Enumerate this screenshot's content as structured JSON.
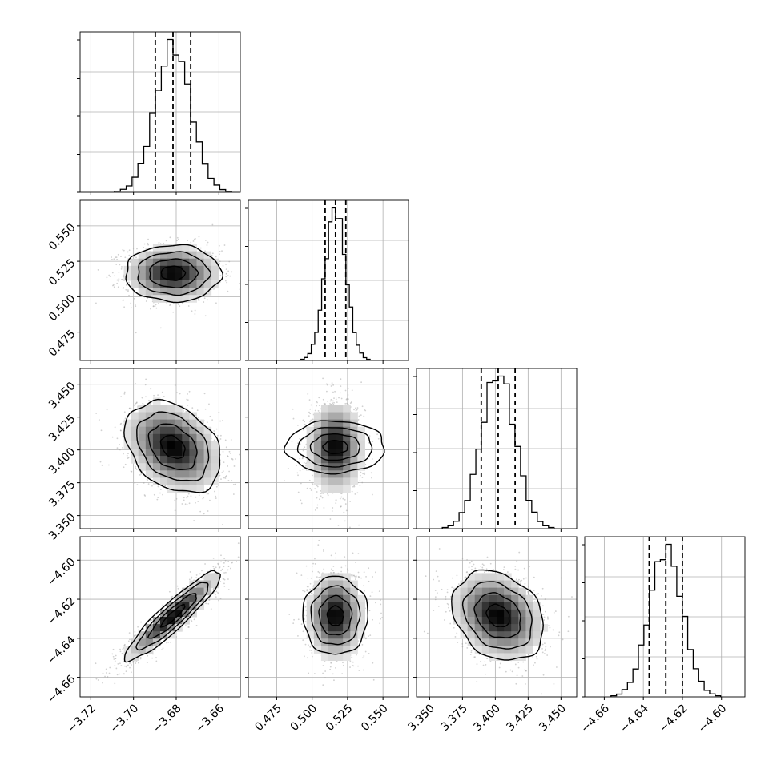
{
  "chart_data": {
    "type": "corner",
    "dimensions": 4,
    "grid": true,
    "colors": {
      "line": "#000000",
      "grid": "#b0b0b0",
      "point": "#9a9a9a",
      "hist_fill": "none"
    },
    "params": [
      {
        "range": [
          -3.725,
          -3.65
        ],
        "ticks": [
          -3.72,
          -3.7,
          -3.68,
          -3.66
        ],
        "tick_labels": [
          "−3.72",
          "−3.70",
          "−3.68",
          "−3.66"
        ],
        "mean": -3.6815,
        "sigma": 0.0083,
        "quantiles": [
          -3.6898,
          -3.6815,
          -3.6732
        ]
      },
      {
        "range": [
          0.455,
          0.568
        ],
        "ticks": [
          0.475,
          0.5,
          0.525,
          0.55
        ],
        "tick_labels": [
          "0.475",
          "0.500",
          "0.525",
          "0.550"
        ],
        "mean": 0.5165,
        "sigma": 0.0074,
        "quantiles": [
          0.5092,
          0.5165,
          0.5238
        ]
      },
      {
        "range": [
          3.34,
          3.462
        ],
        "ticks": [
          3.35,
          3.375,
          3.4,
          3.425,
          3.45
        ],
        "tick_labels": [
          "3.350",
          "3.375",
          "3.400",
          "3.425",
          "3.450"
        ],
        "mean": 3.4022,
        "sigma": 0.0129,
        "quantiles": [
          3.3893,
          3.4022,
          3.4151
        ]
      },
      {
        "range": [
          -4.67,
          -4.588
        ],
        "ticks": [
          -4.66,
          -4.64,
          -4.62,
          -4.6
        ],
        "tick_labels": [
          "−4.66",
          "−4.64",
          "−4.62",
          "−4.60"
        ],
        "mean": -4.6285,
        "sigma": 0.0085,
        "quantiles": [
          -4.637,
          -4.6285,
          -4.62
        ]
      }
    ],
    "correlations": [
      [
        1.0,
        0.0,
        -0.32,
        0.92
      ],
      [
        0.0,
        1.0,
        0.0,
        0.0
      ],
      [
        -0.32,
        0.0,
        1.0,
        -0.25
      ],
      [
        0.92,
        0.0,
        -0.25,
        1.0
      ]
    ],
    "contour_levels": [
      0.5,
      1.0,
      1.5,
      2.0
    ],
    "histogram_bins": 20
  }
}
